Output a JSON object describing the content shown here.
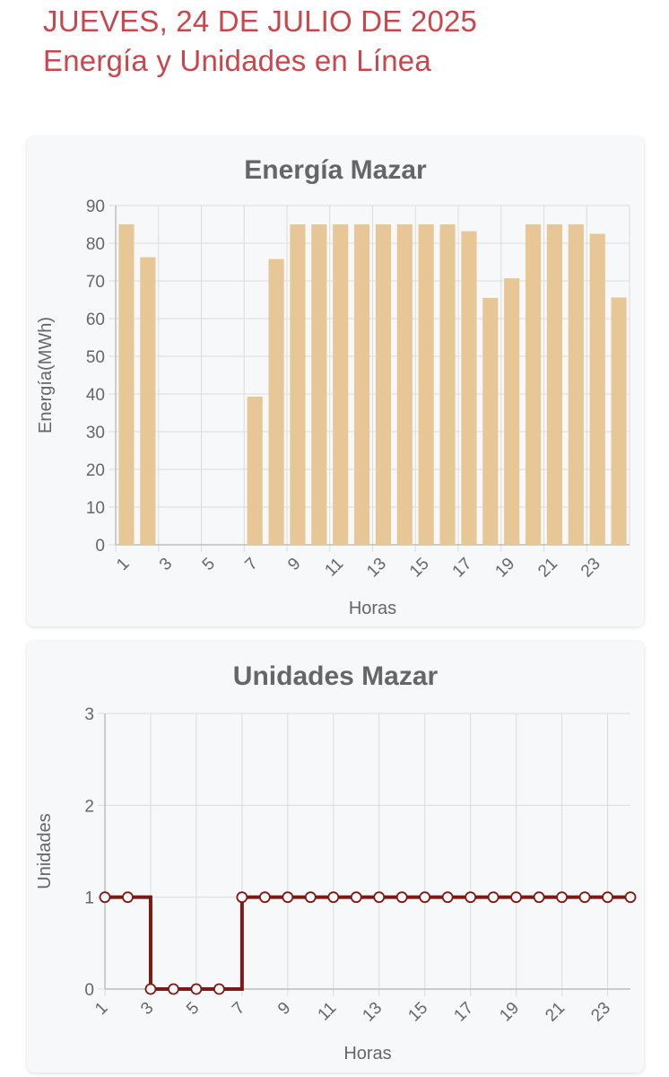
{
  "header": {
    "date_line": "JUEVES, 24 DE JULIO DE 2025",
    "subtitle": "Energía y Unidades en Línea"
  },
  "chart_data": [
    {
      "type": "bar",
      "title": "Energía Mazar",
      "xlabel": "Horas",
      "ylabel": "Energía(MWh)",
      "categories": [
        1,
        2,
        3,
        4,
        5,
        6,
        7,
        8,
        9,
        10,
        11,
        12,
        13,
        14,
        15,
        16,
        17,
        18,
        19,
        20,
        21,
        22,
        23,
        24
      ],
      "tick_labels": [
        "1",
        "3",
        "5",
        "7",
        "9",
        "11",
        "13",
        "15",
        "17",
        "19",
        "21",
        "23"
      ],
      "values": [
        85,
        76.3,
        0,
        0,
        0,
        0,
        39.3,
        75.8,
        85,
        85,
        85,
        85,
        85,
        85,
        85,
        85,
        83.2,
        65.5,
        70.7,
        85,
        85,
        85,
        82.5,
        65.6
      ],
      "ylim": [
        0,
        90
      ],
      "yticks": [
        0,
        10,
        20,
        30,
        40,
        50,
        60,
        70,
        80,
        90
      ],
      "grid": true,
      "bar_color": "#e8c797"
    },
    {
      "type": "line",
      "step": true,
      "title": "Unidades Mazar",
      "xlabel": "Horas",
      "ylabel": "Unidades",
      "x": [
        1,
        2,
        3,
        4,
        5,
        6,
        7,
        8,
        9,
        10,
        11,
        12,
        13,
        14,
        15,
        16,
        17,
        18,
        19,
        20,
        21,
        22,
        23,
        24
      ],
      "tick_labels": [
        "1",
        "3",
        "5",
        "7",
        "9",
        "11",
        "13",
        "15",
        "17",
        "19",
        "21",
        "23"
      ],
      "values": [
        1,
        1,
        0,
        0,
        0,
        0,
        1,
        1,
        1,
        1,
        1,
        1,
        1,
        1,
        1,
        1,
        1,
        1,
        1,
        1,
        1,
        1,
        1,
        1
      ],
      "ylim": [
        0,
        3
      ],
      "yticks": [
        0,
        1,
        2,
        3
      ],
      "grid": true,
      "line_color": "#7b1a14"
    }
  ]
}
